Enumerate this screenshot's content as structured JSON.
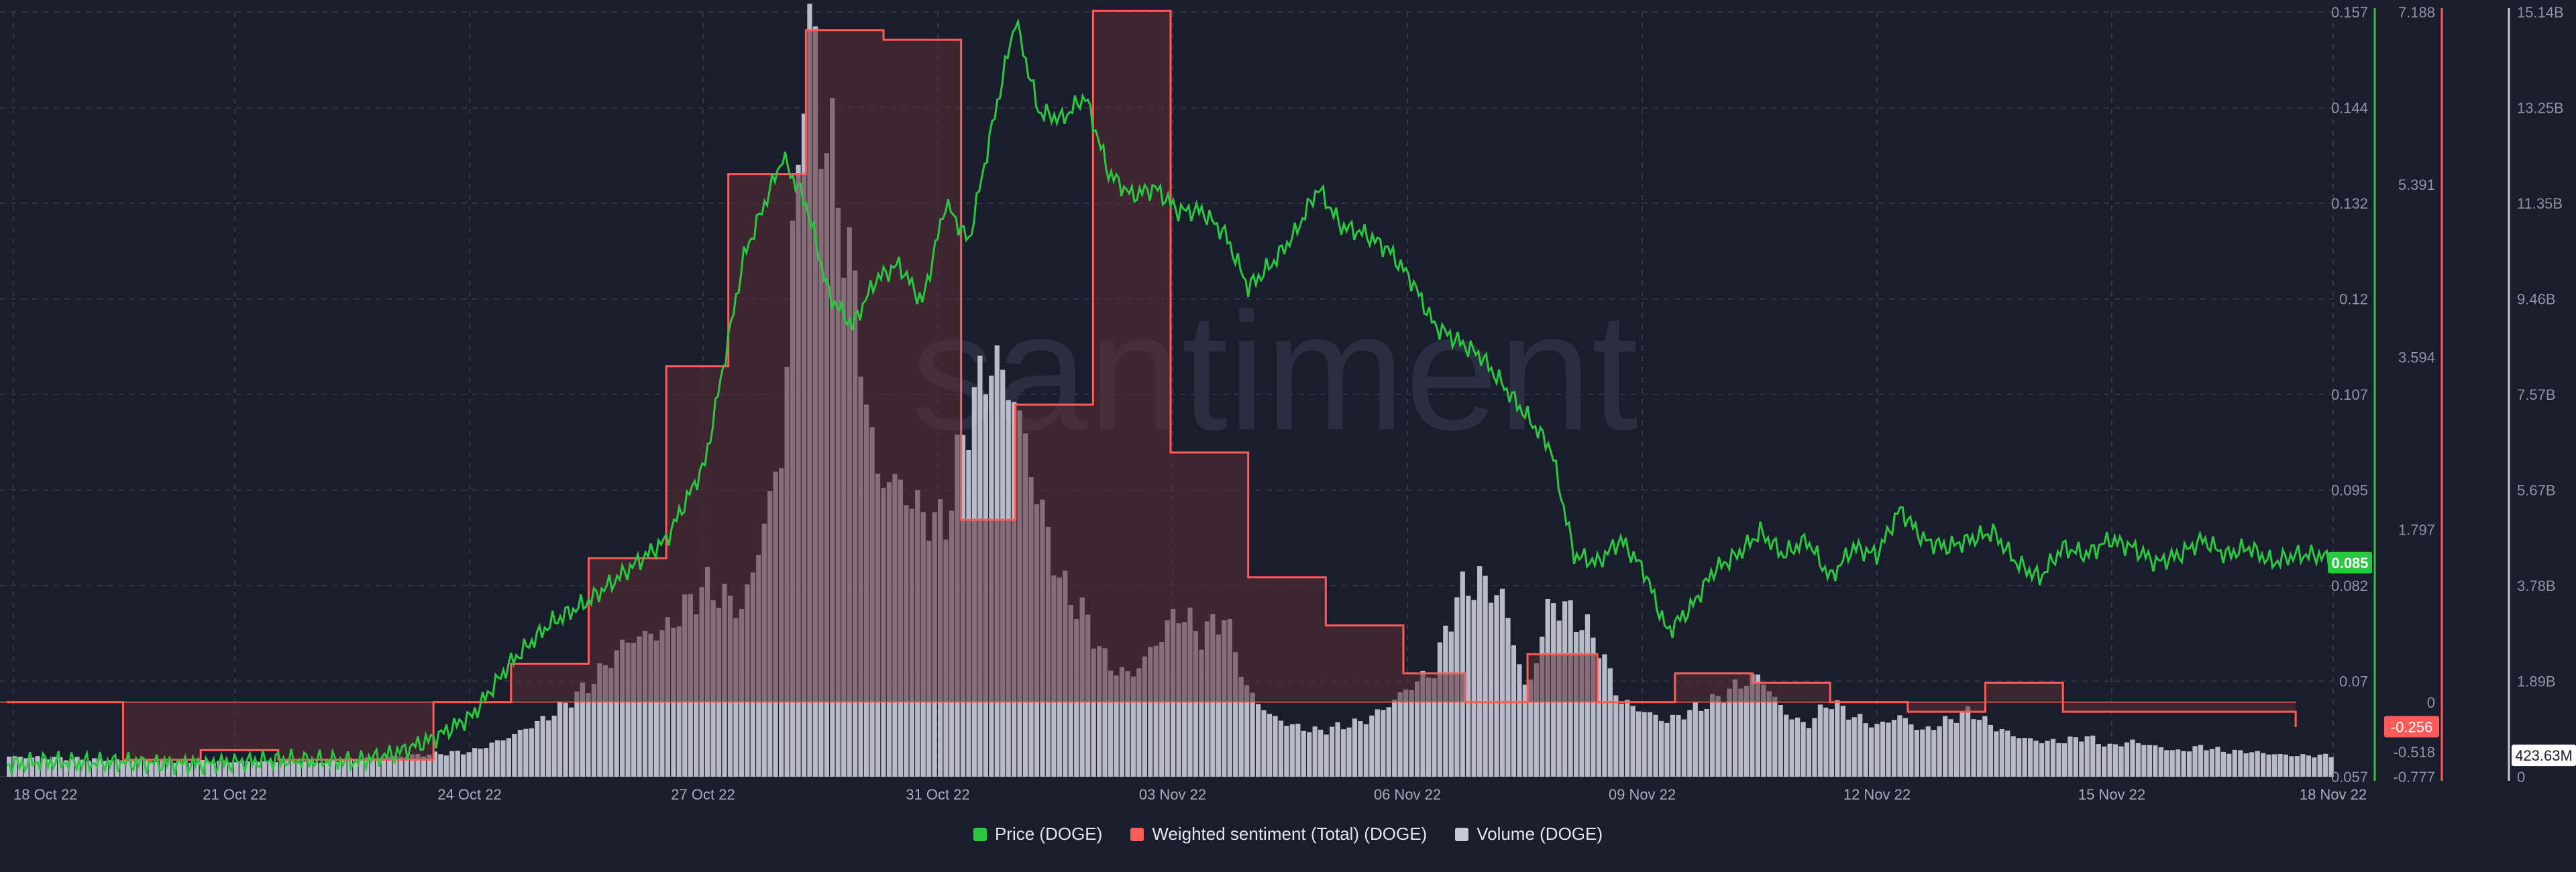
{
  "watermark": "santiment",
  "legend": {
    "price": "Price (DOGE)",
    "sentiment": "Weighted sentiment (Total) (DOGE)",
    "volume": "Volume (DOGE)"
  },
  "colors": {
    "background": "#1a1d2c",
    "price": "#28c840",
    "sentiment": "#ff5b5b",
    "sentiment_fill": "#5b2d35",
    "volume": "#c7cad6",
    "grid": "#2f3446"
  },
  "badges": {
    "price": "0.085",
    "sentiment": "-0.256",
    "volume": "423.63M"
  },
  "chart_data": {
    "type": "line",
    "x_ticks": [
      "18 Oct 22",
      "21 Oct 22",
      "24 Oct 22",
      "27 Oct 22",
      "31 Oct 22",
      "03 Nov 22",
      "06 Nov 22",
      "09 Nov 22",
      "12 Nov 22",
      "15 Nov 22",
      "18 Nov 22"
    ],
    "axes": {
      "price": {
        "ticks": [
          "0.157",
          "0.144",
          "0.132",
          "0.12",
          "0.107",
          "0.095",
          "0.082",
          "0.07",
          "0.057"
        ],
        "range": [
          0.057,
          0.157
        ]
      },
      "sentiment": {
        "ticks": [
          "7.188",
          "5.391",
          "3.594",
          "1.797",
          "0",
          "-0.518",
          "-0.777"
        ],
        "range": [
          -0.777,
          7.188
        ]
      },
      "volume": {
        "ticks": [
          "15.14B",
          "13.25B",
          "11.35B",
          "9.46B",
          "7.57B",
          "5.67B",
          "3.78B",
          "1.89B",
          "0"
        ],
        "range": [
          0,
          15.14
        ]
      }
    },
    "series": [
      {
        "name": "Price (DOGE)",
        "axis": "price",
        "x": [
          0,
          0.5,
          1,
          1.5,
          2,
          2.5,
          3,
          3.5,
          4,
          4.5,
          5,
          5.5,
          6,
          6.5,
          7,
          7.5,
          8,
          8.5,
          9,
          9.5,
          10,
          10.3,
          10.6,
          10.9,
          11.2,
          11.5,
          11.8,
          12.1,
          12.4,
          12.7,
          13.0,
          13.3,
          13.6,
          13.9,
          14.2,
          14.5,
          14.8,
          15.1,
          15.4,
          15.7,
          16.0,
          16.3,
          16.6,
          16.9,
          17.2,
          17.5,
          17.8,
          18.1,
          18.4,
          18.7,
          19.0,
          19.3,
          19.6,
          19.9,
          20.2,
          20.5,
          20.8,
          21.1,
          21.4,
          21.7,
          22.0,
          22.3,
          22.6,
          22.9,
          23.2,
          23.5,
          23.8,
          24.1,
          24.4,
          24.7,
          25.0,
          25.3,
          25.6,
          25.9,
          26.2,
          26.5,
          26.8,
          27.1,
          27.4,
          27.7,
          28.0,
          28.3,
          28.6,
          28.9,
          29.2,
          29.5,
          29.8,
          30.0
        ],
        "values": [
          0.0585,
          0.059,
          0.0588,
          0.0589,
          0.0587,
          0.0586,
          0.0589,
          0.0592,
          0.0591,
          0.059,
          0.06,
          0.062,
          0.065,
          0.072,
          0.077,
          0.08,
          0.084,
          0.088,
          0.098,
          0.125,
          0.138,
          0.132,
          0.12,
          0.116,
          0.122,
          0.124,
          0.119,
          0.132,
          0.127,
          0.142,
          0.156,
          0.144,
          0.143,
          0.146,
          0.136,
          0.133,
          0.134,
          0.131,
          0.131,
          0.128,
          0.121,
          0.124,
          0.128,
          0.134,
          0.129,
          0.128,
          0.126,
          0.122,
          0.116,
          0.114,
          0.112,
          0.108,
          0.104,
          0.1,
          0.086,
          0.085,
          0.088,
          0.084,
          0.076,
          0.079,
          0.084,
          0.086,
          0.089,
          0.086,
          0.088,
          0.083,
          0.087,
          0.086,
          0.092,
          0.088,
          0.087,
          0.088,
          0.089,
          0.085,
          0.083,
          0.087,
          0.086,
          0.088,
          0.087,
          0.085,
          0.086,
          0.088,
          0.086,
          0.087,
          0.085,
          0.086,
          0.086,
          0.085
        ]
      },
      {
        "name": "Weighted sentiment (Total) (DOGE)",
        "axis": "sentiment",
        "step": true,
        "x": [
          0,
          1.5,
          2.5,
          3.5,
          4.5,
          5.5,
          6.5,
          7.5,
          8.5,
          9.3,
          10.3,
          11.3,
          12.3,
          13.0,
          14.0,
          15.0,
          16.0,
          17.0,
          18.0,
          18.8,
          19.6,
          20.5,
          21.5,
          22.5,
          23.5,
          24.5,
          25.5,
          26.5,
          27.5,
          29.5
        ],
        "values": [
          0.0,
          -0.6,
          -0.5,
          -0.6,
          -0.6,
          0.0,
          0.4,
          1.5,
          3.5,
          5.5,
          7.0,
          6.9,
          1.9,
          3.1,
          7.2,
          2.6,
          1.3,
          0.8,
          0.3,
          0.0,
          0.5,
          0.0,
          0.3,
          0.2,
          0.0,
          -0.1,
          0.2,
          -0.1,
          -0.1,
          -0.26
        ]
      },
      {
        "name": "Volume (DOGE)",
        "axis": "volume",
        "x": [
          0,
          1,
          2,
          3,
          4,
          5,
          6,
          6.5,
          7,
          7.5,
          8,
          8.5,
          9,
          9.5,
          10,
          10.3,
          10.6,
          10.9,
          11.2,
          11.5,
          11.8,
          12.1,
          12.4,
          12.7,
          13.0,
          13.3,
          13.6,
          13.9,
          14.2,
          14.5,
          14.8,
          15.1,
          15.4,
          15.7,
          16.0,
          16.3,
          16.6,
          16.9,
          17.2,
          17.5,
          17.8,
          18.1,
          18.4,
          18.7,
          19.0,
          19.3,
          19.6,
          19.9,
          20.2,
          20.5,
          20.8,
          21.1,
          21.4,
          21.7,
          22.0,
          22.3,
          22.6,
          22.9,
          23.2,
          23.5,
          23.8,
          24.1,
          24.4,
          24.7,
          25.0,
          25.3,
          25.6,
          25.9,
          26.2,
          26.5,
          26.8,
          27.1,
          27.4,
          27.7,
          28.0,
          28.3,
          28.6,
          28.9,
          29.2,
          29.5,
          30.0
        ],
        "values": [
          0.4,
          0.35,
          0.3,
          0.3,
          0.3,
          0.4,
          0.5,
          0.8,
          1.2,
          1.8,
          2.7,
          2.9,
          3.8,
          3.3,
          6.5,
          14.9,
          12.5,
          10.0,
          6.0,
          5.8,
          5.2,
          5.0,
          7.2,
          8.3,
          7.5,
          5.5,
          3.8,
          3.2,
          2.2,
          2.0,
          2.6,
          3.3,
          2.8,
          3.2,
          1.7,
          1.2,
          1.0,
          0.9,
          1.0,
          1.1,
          1.4,
          1.8,
          2.1,
          3.6,
          3.9,
          3.5,
          1.6,
          3.5,
          3.2,
          2.7,
          1.5,
          1.3,
          1.1,
          1.3,
          1.5,
          1.8,
          2.0,
          1.3,
          1.0,
          1.5,
          1.2,
          1.0,
          1.2,
          0.9,
          1.1,
          1.3,
          1.0,
          0.8,
          0.7,
          0.7,
          0.8,
          0.6,
          0.7,
          0.6,
          0.5,
          0.6,
          0.5,
          0.5,
          0.45,
          0.42,
          0.42
        ]
      }
    ]
  }
}
